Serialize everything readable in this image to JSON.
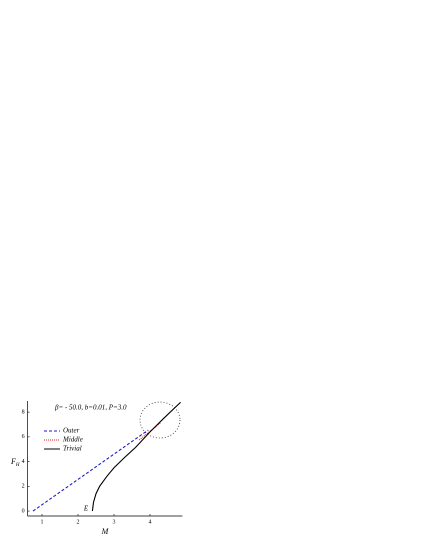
{
  "chart_data": {
    "type": "line",
    "annotation": "β= - 50.0,  b=0.01,  P=3.0",
    "point_label": "E",
    "xlabel": "M",
    "ylabel": "F",
    "ylabel_subscript": "H",
    "xlim": [
      0.6,
      4.9
    ],
    "ylim": [
      -0.4,
      8.9
    ],
    "xticks": [
      1,
      2,
      3,
      4
    ],
    "yticks": [
      0,
      2,
      4,
      6,
      8
    ],
    "legend": "upper-left",
    "series": [
      {
        "name": "Outer",
        "color": "#1a1acc",
        "style": "dashed",
        "x": [
          0.75,
          3.95
        ],
        "values": [
          0,
          6.55
        ]
      },
      {
        "name": "Middle",
        "color": "#e02020",
        "style": "dotted",
        "x": [
          3.7,
          4.0,
          4.3
        ],
        "values": [
          5.75,
          6.45,
          7.15
        ]
      },
      {
        "name": "Trivial",
        "color": "#000000",
        "style": "solid",
        "x": [
          2.4,
          2.43,
          2.5,
          2.6,
          2.8,
          3.0,
          3.3,
          3.6,
          4.0,
          4.4,
          4.85
        ],
        "values": [
          0,
          0.7,
          1.4,
          2.0,
          2.8,
          3.5,
          4.35,
          5.15,
          6.4,
          7.55,
          8.8
        ]
      }
    ]
  }
}
